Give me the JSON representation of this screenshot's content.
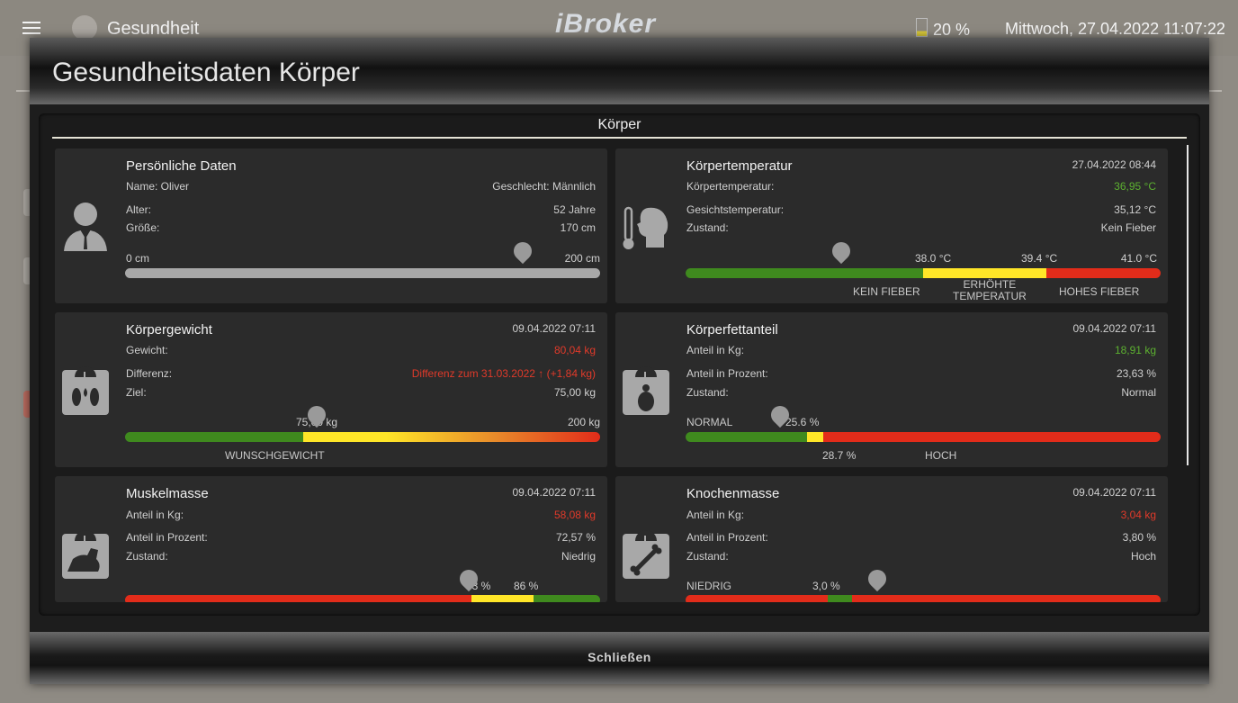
{
  "header": {
    "app_title": "Gesundheit",
    "brand": "iBroker",
    "battery": "20 %",
    "datetime": "Mittwoch, 27.04.2022  11:07:22"
  },
  "dialog": {
    "title": "Gesundheitsdaten Körper",
    "close_label": "Schließen",
    "panel_title": "Körper"
  },
  "colors": {
    "green": "#3f8a1e",
    "yellow": "#ffe628",
    "red": "#e22c1a",
    "gray": "#a8a8a8"
  },
  "personal": {
    "title": "Persönliche Daten",
    "name": "Name: Oliver",
    "gender": "Geschlecht: Männlich",
    "age_label": "Alter:",
    "age_value": "52 Jahre",
    "height_label": "Größe:",
    "height_value": "170 cm",
    "range_min": "0 cm",
    "range_max": "200 cm",
    "pointer_value": 170
  },
  "temperature": {
    "title": "Körpertemperatur",
    "date": "27.04.2022 08:44",
    "body_label": "Körpertemperatur:",
    "body_value": "36,95 °C",
    "face_label": "Gesichtstemperatur:",
    "face_value": "35,12 °C",
    "state_label": "Zustand:",
    "state_value": "Kein Fieber",
    "tick_1": "38.0 °C",
    "tick_2": "39.4 °C",
    "tick_3": "41.0 °C",
    "zone_1": "KEIN FIEBER",
    "zone_2a": "ERHÖHTE",
    "zone_2b": "TEMPERATUR",
    "zone_3": "HOHES FIEBER",
    "pointer_value": 36.95
  },
  "weight": {
    "title": "Körpergewicht",
    "date": "09.04.2022 07:11",
    "weight_label": "Gewicht:",
    "weight_value": "80,04 kg",
    "diff_label": "Differenz:",
    "diff_value": "Differenz zum 31.03.2022 ↑ (+1,84 kg)",
    "goal_label": "Ziel:",
    "goal_value": "75,00 kg",
    "tick_1": "75,00 kg",
    "tick_2": "200 kg",
    "zone_1": "WUNSCHGEWICHT"
  },
  "fat": {
    "title": "Körperfettanteil",
    "date": "09.04.2022 07:11",
    "kg_label": "Anteil in Kg:",
    "kg_value": "18,91 kg",
    "pct_label": "Anteil in Prozent:",
    "pct_value": "23,63 %",
    "state_label": "Zustand:",
    "state_value": "Normal",
    "zone_1": "NORMAL",
    "tick_1": "25.6 %",
    "tick_2": "28.7 %",
    "zone_2": "HOCH"
  },
  "muscle": {
    "title": "Muskelmasse",
    "date": "09.04.2022 07:11",
    "kg_label": "Anteil in Kg:",
    "kg_value": "58,08 kg",
    "pct_label": "Anteil in Prozent:",
    "pct_value": "72,57 %",
    "state_label": "Zustand:",
    "state_value": "Niedrig",
    "tick_1": "73 %",
    "tick_2": "86 %"
  },
  "bone": {
    "title": "Knochenmasse",
    "date": "09.04.2022 07:11",
    "kg_label": "Anteil in Kg:",
    "kg_value": "3,04 kg",
    "pct_label": "Anteil in Prozent:",
    "pct_value": "3,80 %",
    "state_label": "Zustand:",
    "state_value": "Hoch",
    "zone_1": "NIEDRIG",
    "tick_1": "3,0 %"
  }
}
